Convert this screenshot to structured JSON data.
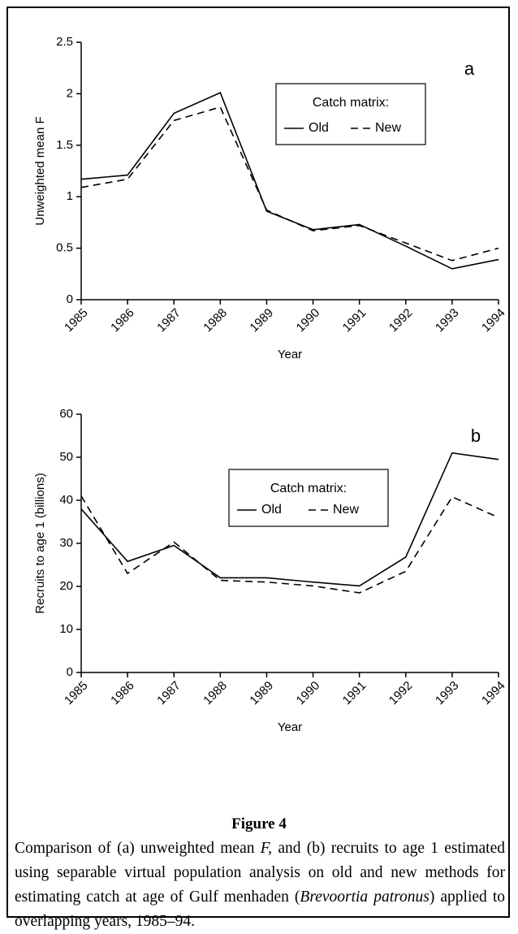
{
  "chart_data": [
    {
      "type": "line",
      "annotation": "a",
      "y_label": "Unweighted mean F",
      "x_label": "Year",
      "x": [
        1985,
        1986,
        1987,
        1988,
        1989,
        1990,
        1991,
        1992,
        1993,
        1994
      ],
      "xlim": [
        1985,
        1994
      ],
      "xticks": [
        1985,
        1986,
        1987,
        1988,
        1989,
        1990,
        1991,
        1992,
        1993,
        1994
      ],
      "ylim": [
        0,
        2.5
      ],
      "yticks": [
        0,
        0.5,
        1,
        1.5,
        2,
        2.5
      ],
      "legend_title": "Catch matrix:",
      "series": [
        {
          "name": "Old",
          "color": "#000000",
          "line_style": "solid",
          "values": [
            1.17,
            1.21,
            1.81,
            2.01,
            0.86,
            0.68,
            0.73,
            0.52,
            0.3,
            0.39
          ]
        },
        {
          "name": "New",
          "color": "#000000",
          "line_style": "dashed",
          "values": [
            1.09,
            1.17,
            1.74,
            1.87,
            0.87,
            0.67,
            0.72,
            0.55,
            0.38,
            0.5
          ]
        }
      ]
    },
    {
      "type": "line",
      "annotation": "b",
      "y_label": "Recruits to age 1 (billions)",
      "x_label": "Year",
      "x": [
        1985,
        1986,
        1987,
        1988,
        1989,
        1990,
        1991,
        1992,
        1993,
        1994
      ],
      "xlim": [
        1985,
        1994
      ],
      "xticks": [
        1985,
        1986,
        1987,
        1988,
        1989,
        1990,
        1991,
        1992,
        1993,
        1994
      ],
      "ylim": [
        0,
        60
      ],
      "yticks": [
        0,
        10,
        20,
        30,
        40,
        50,
        60
      ],
      "legend_title": "Catch matrix:",
      "series": [
        {
          "name": "Old",
          "color": "#000000",
          "line_style": "solid",
          "values": [
            38,
            25.8,
            29.5,
            22,
            22,
            21,
            20.1,
            26.8,
            51,
            49.5
          ]
        },
        {
          "name": "New",
          "color": "#000000",
          "line_style": "dashed",
          "values": [
            41,
            23,
            30.3,
            21.4,
            21,
            20.1,
            18.5,
            23.5,
            40.8,
            36
          ]
        }
      ]
    }
  ],
  "caption": {
    "label": "Figure 4",
    "runs": [
      "Comparison of (a) unweighted mean ",
      "F,",
      " and (b) recruits to age 1 estimated using separable virtual population analysis on old and new methods for estimating catch at age of Gulf menhaden (",
      "Brevoortia patronus",
      ") applied to overlapping years, 1985–94."
    ]
  }
}
